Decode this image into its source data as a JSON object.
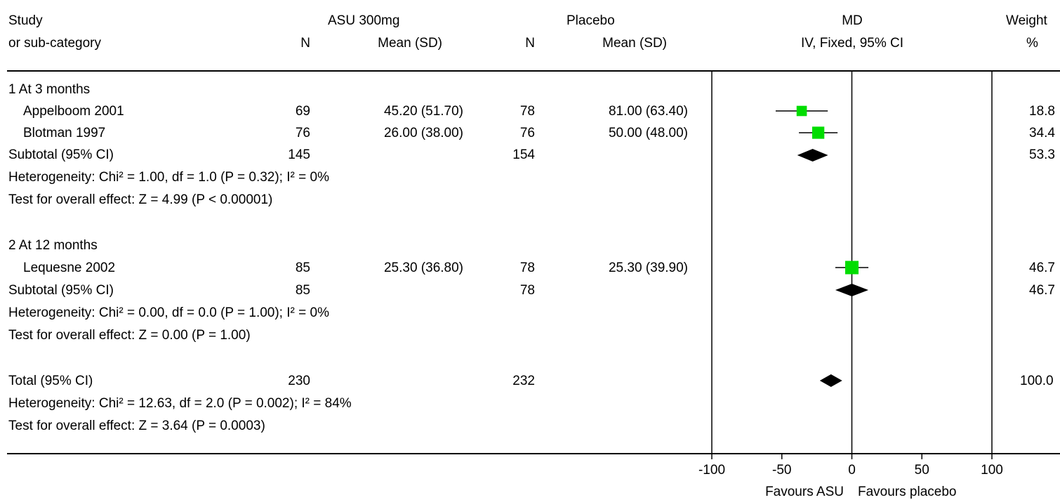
{
  "header": {
    "study": "Study",
    "subcat": "or sub-category",
    "group1": "ASU 300mg",
    "group2": "Placebo",
    "n": "N",
    "mean_sd": "Mean (SD)",
    "md": "MD",
    "md_method": "IV, Fixed, 95% CI",
    "weight": "Weight",
    "weight_unit": "%"
  },
  "groups": [
    {
      "title": "1 At 3 months",
      "studies": [
        {
          "name": "Appelboom 2001",
          "n1": "69",
          "m1": "45.20 (51.70)",
          "n2": "78",
          "m2": "81.00 (63.40)",
          "weight": "18.8"
        },
        {
          "name": "Blotman 1997",
          "n1": "76",
          "m1": "26.00 (38.00)",
          "n2": "76",
          "m2": "50.00 (48.00)",
          "weight": "34.4"
        }
      ],
      "subtotal": {
        "label": "Subtotal (95% CI)",
        "n1": "145",
        "n2": "154",
        "weight": "53.3"
      },
      "heterogeneity": "Heterogeneity: Chi² = 1.00, df = 1.0 (P = 0.32); I² = 0%",
      "overall": "Test for overall effect: Z = 4.99 (P < 0.00001)"
    },
    {
      "title": "2 At 12 months",
      "studies": [
        {
          "name": "Lequesne 2002",
          "n1": "85",
          "m1": "25.30 (36.80)",
          "n2": "78",
          "m2": "25.30 (39.90)",
          "weight": "46.7"
        }
      ],
      "subtotal": {
        "label": "Subtotal (95% CI)",
        "n1": "85",
        "n2": "78",
        "weight": "46.7"
      },
      "heterogeneity": "Heterogeneity: Chi² = 0.00, df = 0.0 (P = 1.00); I² = 0%",
      "overall": "Test for overall effect: Z = 0.00 (P = 1.00)"
    }
  ],
  "total": {
    "label": "Total (95% CI)",
    "n1": "230",
    "n2": "232",
    "weight": "100.0",
    "heterogeneity": "Heterogeneity: Chi² = 12.63, df = 2.0 (P = 0.002); I² = 84%",
    "overall": "Test for overall effect: Z = 3.64 (P = 0.0003)"
  },
  "footer": {
    "favours_left": "Favours ASU",
    "favours_right": "Favours placebo"
  },
  "chart_data": {
    "type": "forest",
    "xlim": [
      -100,
      100
    ],
    "xticks": [
      -100,
      -50,
      0,
      50,
      100
    ],
    "xtick_labels": [
      "-100",
      "-50",
      "0",
      "50",
      "100"
    ],
    "null_line": 0,
    "marker_color": "#00dd00",
    "diamond_color": "#000000",
    "studies": [
      {
        "name": "Appelboom 2001",
        "md": -35.8,
        "ci": [
          -54.4,
          -17.2
        ],
        "weight": 18.8
      },
      {
        "name": "Blotman 1997",
        "md": -24.0,
        "ci": [
          -37.8,
          -10.2
        ],
        "weight": 34.4
      },
      {
        "name": "Lequesne 2002",
        "md": 0.0,
        "ci": [
          -11.8,
          11.8
        ],
        "weight": 46.7
      }
    ],
    "subtotals": [
      {
        "label": "Subtotal (95% CI)",
        "md": -28.0,
        "ci": [
          -39.0,
          -17.0
        ]
      },
      {
        "label": "Subtotal (95% CI)",
        "md": 0.0,
        "ci": [
          -11.8,
          11.8
        ]
      }
    ],
    "total": {
      "label": "Total (95% CI)",
      "md": -14.9,
      "ci": [
        -22.9,
        -6.9
      ]
    }
  }
}
